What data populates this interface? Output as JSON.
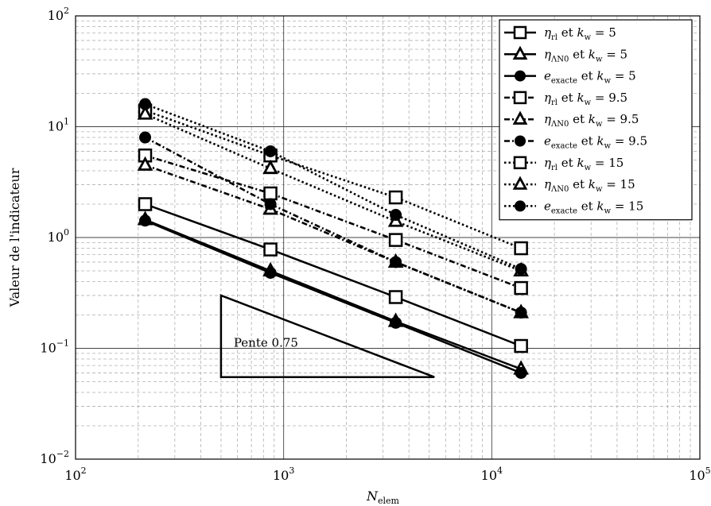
{
  "chart_data": {
    "type": "line",
    "log_x": true,
    "log_y": true,
    "xlim": [
      100,
      100000
    ],
    "ylim": [
      0.01,
      100
    ],
    "grid": true,
    "legend_position": "top-right",
    "xlabel_main": "N",
    "xlabel_sub": "elem",
    "ylabel": "Valeur de l'indicateur",
    "x_ticks": [
      {
        "base": "10",
        "exp": "2",
        "value": 100
      },
      {
        "base": "10",
        "exp": "3",
        "value": 1000
      },
      {
        "base": "10",
        "exp": "4",
        "value": 10000
      },
      {
        "base": "10",
        "exp": "5",
        "value": 100000
      }
    ],
    "y_ticks": [
      {
        "base": "10",
        "exp": "−2",
        "value": 0.01
      },
      {
        "base": "10",
        "exp": "−1",
        "value": 0.1
      },
      {
        "base": "10",
        "exp": "0",
        "value": 1
      },
      {
        "base": "10",
        "exp": "1",
        "value": 10
      },
      {
        "base": "10",
        "exp": "2",
        "value": 100
      }
    ],
    "x": [
      216,
      864,
      3456,
      13824
    ],
    "series": [
      {
        "sym": "η",
        "sub": "rl",
        "kw": "5",
        "style": "solid",
        "marker": "square",
        "values": [
          2.0,
          0.78,
          0.29,
          0.105
        ]
      },
      {
        "sym": "η",
        "sub": "ΛN0",
        "kw": "5",
        "style": "solid",
        "marker": "triangle",
        "values": [
          1.45,
          0.5,
          0.175,
          0.065
        ]
      },
      {
        "sym": "e",
        "sub": "exacte",
        "kw": "5",
        "style": "solid",
        "marker": "circle",
        "values": [
          1.42,
          0.48,
          0.17,
          0.06
        ]
      },
      {
        "sym": "η",
        "sub": "rl",
        "kw": "9.5",
        "style": "dashdot",
        "marker": "square",
        "values": [
          5.5,
          2.5,
          0.95,
          0.35
        ]
      },
      {
        "sym": "η",
        "sub": "ΛN0",
        "kw": "9.5",
        "style": "dashdot",
        "marker": "triangle",
        "values": [
          4.5,
          1.8,
          0.6,
          0.21
        ]
      },
      {
        "sym": "e",
        "sub": "exacte",
        "kw": "9.5",
        "style": "dashdot",
        "marker": "circle",
        "values": [
          8.0,
          2.0,
          0.6,
          0.21
        ]
      },
      {
        "sym": "η",
        "sub": "rl",
        "kw": "15",
        "style": "dotted",
        "marker": "square",
        "values": [
          14.0,
          5.5,
          2.3,
          0.8
        ]
      },
      {
        "sym": "η",
        "sub": "ΛN0",
        "kw": "15",
        "style": "dotted",
        "marker": "triangle",
        "values": [
          13.0,
          4.2,
          1.4,
          0.5
        ]
      },
      {
        "sym": "e",
        "sub": "exacte",
        "kw": "15",
        "style": "dotted",
        "marker": "circle",
        "values": [
          16.0,
          6.0,
          1.6,
          0.52
        ]
      }
    ],
    "legend": {
      "et": "et",
      "kw_sym": "k",
      "kw_sub": "w",
      "eq": "="
    },
    "annotation": {
      "text": "Pente 0.75",
      "triangle_vertices": [
        [
          500,
          0.3
        ],
        [
          500,
          0.055
        ],
        [
          5300,
          0.055
        ]
      ]
    }
  }
}
